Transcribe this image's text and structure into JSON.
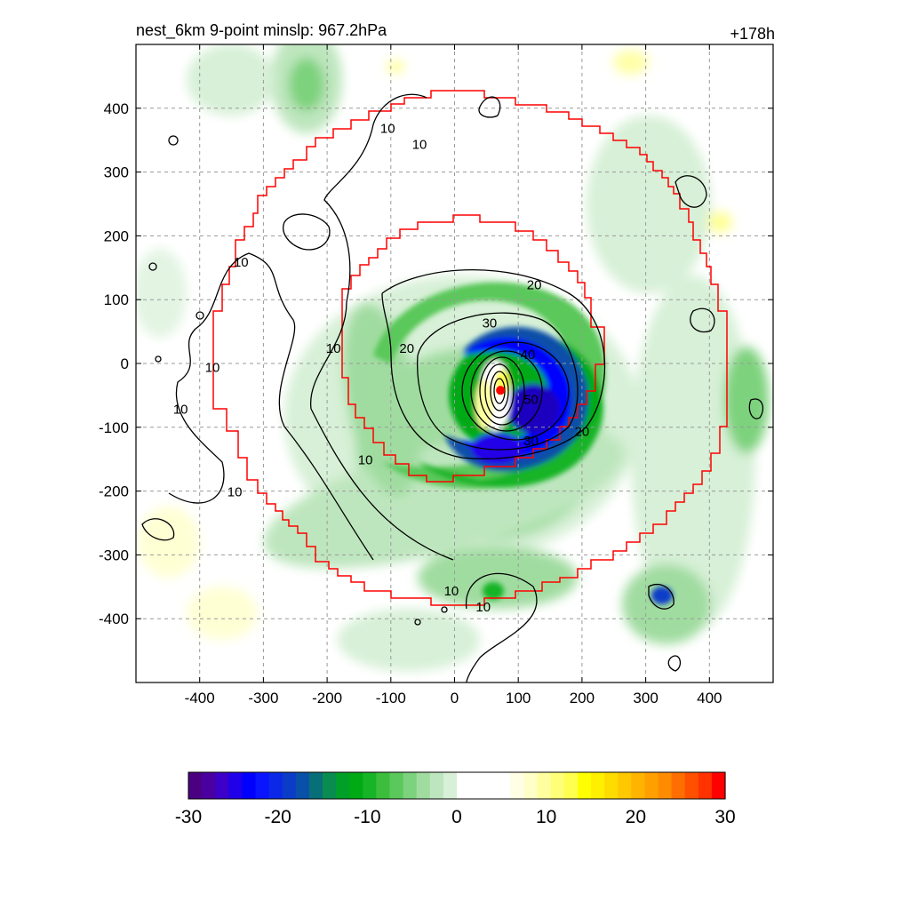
{
  "chart_data": {
    "type": "heatmap",
    "title_left": "nest_6km  9-point minslp: 967.2hPa",
    "title_right": "+178h",
    "xlim": [
      -500,
      500
    ],
    "ylim": [
      -500,
      500
    ],
    "x_ticks": [
      -400,
      -300,
      -200,
      -100,
      0,
      100,
      200,
      300,
      400
    ],
    "y_ticks": [
      400,
      300,
      200,
      100,
      0,
      -100,
      -200,
      -300,
      -400
    ],
    "grid": true,
    "center": [
      72,
      -42
    ],
    "contour_levels": [
      10,
      20,
      30,
      40,
      50
    ],
    "contour_labels": [
      {
        "text": "10",
        "x": -105,
        "y": 370
      },
      {
        "text": "10",
        "x": -55,
        "y": 345
      },
      {
        "text": "10",
        "x": -335,
        "y": 160
      },
      {
        "text": "10",
        "x": -190,
        "y": 25
      },
      {
        "text": "10",
        "x": -380,
        "y": -5
      },
      {
        "text": "10",
        "x": -430,
        "y": -70
      },
      {
        "text": "10",
        "x": -345,
        "y": -200
      },
      {
        "text": "10",
        "x": -140,
        "y": -150
      },
      {
        "text": "10",
        "x": -5,
        "y": -355
      },
      {
        "text": "10",
        "x": 45,
        "y": -380
      },
      {
        "text": "20",
        "x": 125,
        "y": 125
      },
      {
        "text": "20",
        "x": -75,
        "y": 25
      },
      {
        "text": "20",
        "x": 200,
        "y": -105
      },
      {
        "text": "30",
        "x": 55,
        "y": 65
      },
      {
        "text": "30",
        "x": 120,
        "y": -120
      },
      {
        "text": "40",
        "x": 115,
        "y": 15
      },
      {
        "text": "50",
        "x": 120,
        "y": -55
      }
    ],
    "colorbar": {
      "min": -30,
      "max": 30,
      "ticks": [
        -30,
        -20,
        -10,
        0,
        10,
        20,
        30
      ],
      "colors": [
        "#4b0082",
        "#4a00a0",
        "#3c00c8",
        "#2000e8",
        "#0000ff",
        "#0a14ff",
        "#0a28e6",
        "#0a3cc8",
        "#0850a8",
        "#086e78",
        "#088c50",
        "#00a028",
        "#00aa14",
        "#18b428",
        "#3cbe3c",
        "#5ac85a",
        "#7dd27d",
        "#a0dca0",
        "#bee6be",
        "#d7f0d7",
        "#ffffff",
        "#ffffff",
        "#ffffff",
        "#ffffff",
        "#ffffe6",
        "#ffffc8",
        "#ffffa0",
        "#ffff78",
        "#ffff50",
        "#ffff00",
        "#fff000",
        "#ffdc00",
        "#ffc800",
        "#ffb400",
        "#ffa000",
        "#ff8c00",
        "#ff6e00",
        "#ff5000",
        "#ff3200",
        "#ff0000"
      ]
    },
    "colors": {
      "domain_boundary": "#ff0000",
      "contour": "#000000",
      "grid": "#999999",
      "center_marker": "#ff0000"
    }
  }
}
